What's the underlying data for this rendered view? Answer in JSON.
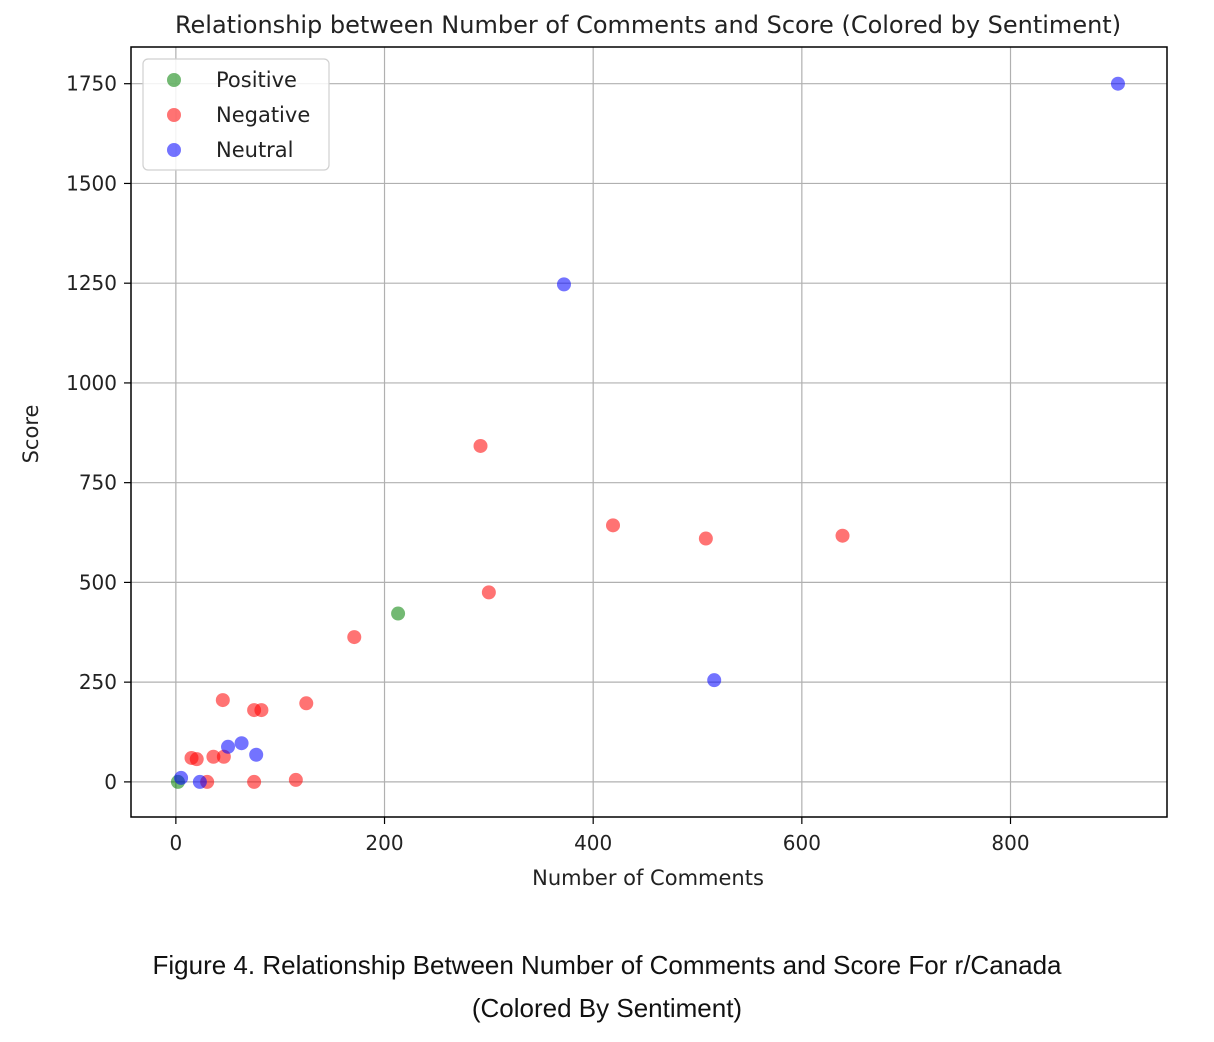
{
  "chart_data": {
    "type": "scatter",
    "title": "Relationship between Number of Comments and Score (Colored by Sentiment)",
    "xlabel": "Number of Comments",
    "ylabel": "Score",
    "xlim": [
      -43,
      950
    ],
    "ylim": [
      -88,
      1842
    ],
    "xticks": [
      0,
      200,
      400,
      600,
      800
    ],
    "yticks": [
      0,
      250,
      500,
      750,
      1000,
      1250,
      1500,
      1750
    ],
    "grid": true,
    "legend_position": "upper-left",
    "series": [
      {
        "name": "Positive",
        "color": "#008000",
        "points": [
          [
            2,
            0
          ],
          [
            213,
            422
          ]
        ]
      },
      {
        "name": "Negative",
        "color": "#ff0000",
        "points": [
          [
            15,
            60
          ],
          [
            20,
            57
          ],
          [
            30,
            0
          ],
          [
            36,
            63
          ],
          [
            45,
            205
          ],
          [
            46,
            63
          ],
          [
            75,
            180
          ],
          [
            82,
            180
          ],
          [
            75,
            0
          ],
          [
            115,
            5
          ],
          [
            125,
            197
          ],
          [
            171,
            363
          ],
          [
            292,
            842
          ],
          [
            300,
            475
          ],
          [
            419,
            643
          ],
          [
            508,
            610
          ],
          [
            639,
            617
          ]
        ]
      },
      {
        "name": "Neutral",
        "color": "#0000ff",
        "points": [
          [
            5,
            10
          ],
          [
            23,
            0
          ],
          [
            50,
            88
          ],
          [
            63,
            97
          ],
          [
            77,
            68
          ],
          [
            372,
            1247
          ],
          [
            516,
            255
          ],
          [
            903,
            1750
          ]
        ]
      }
    ]
  },
  "caption": {
    "line1": "Figure 4. Relationship Between Number of Comments and Score For r/Canada",
    "line2": "(Colored By Sentiment)"
  }
}
